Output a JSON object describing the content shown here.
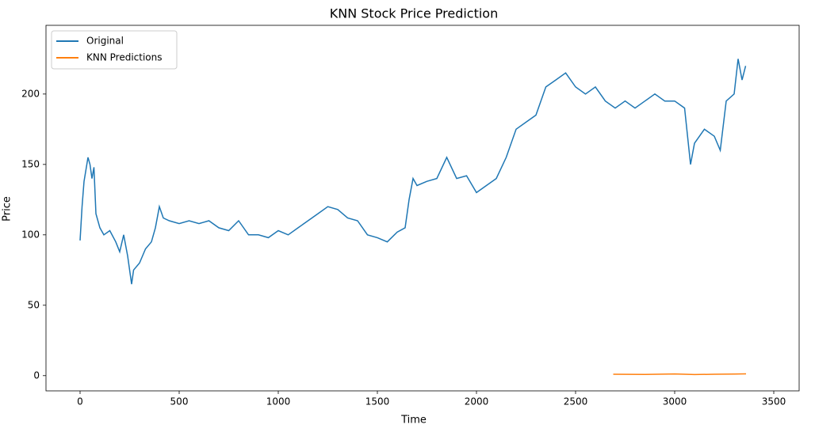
{
  "chart_data": {
    "type": "line",
    "title": "KNN Stock Price Prediction",
    "xlabel": "Time",
    "ylabel": "Price",
    "xlim": [
      -172,
      3628
    ],
    "ylim": [
      -10.8,
      248.8
    ],
    "xticks": [
      0,
      500,
      1000,
      1500,
      2000,
      2500,
      3000,
      3500
    ],
    "yticks": [
      0,
      50,
      100,
      150,
      200
    ],
    "legend": "upper left",
    "grid": false,
    "series": [
      {
        "name": "Original",
        "color": "#1f77b4",
        "x": [
          0,
          10,
          20,
          40,
          50,
          60,
          70,
          80,
          100,
          120,
          150,
          180,
          200,
          220,
          240,
          260,
          270,
          300,
          330,
          360,
          380,
          400,
          420,
          450,
          500,
          550,
          600,
          650,
          700,
          750,
          800,
          850,
          900,
          950,
          1000,
          1050,
          1100,
          1150,
          1200,
          1250,
          1300,
          1350,
          1400,
          1450,
          1500,
          1550,
          1600,
          1640,
          1660,
          1680,
          1700,
          1750,
          1800,
          1850,
          1900,
          1950,
          2000,
          2050,
          2100,
          2150,
          2200,
          2250,
          2300,
          2350,
          2400,
          2450,
          2500,
          2550,
          2600,
          2650,
          2700,
          2750,
          2800,
          2850,
          2900,
          2950,
          3000,
          3050,
          3080,
          3100,
          3150,
          3200,
          3230,
          3260,
          3300,
          3320,
          3340,
          3358
        ],
        "values": [
          96,
          120,
          138,
          155,
          150,
          140,
          148,
          115,
          105,
          100,
          103,
          95,
          88,
          100,
          85,
          65,
          75,
          80,
          90,
          95,
          105,
          120,
          112,
          110,
          108,
          110,
          108,
          110,
          105,
          103,
          110,
          100,
          100,
          98,
          103,
          100,
          105,
          110,
          115,
          120,
          118,
          112,
          110,
          100,
          98,
          95,
          102,
          105,
          125,
          140,
          135,
          138,
          140,
          155,
          140,
          142,
          130,
          135,
          140,
          155,
          175,
          180,
          185,
          205,
          210,
          215,
          205,
          200,
          205,
          195,
          190,
          195,
          190,
          195,
          200,
          195,
          195,
          190,
          150,
          165,
          175,
          170,
          160,
          195,
          200,
          225,
          210,
          220
        ]
      },
      {
        "name": "KNN Predictions",
        "color": "#ff7f0e",
        "x": [
          2690,
          2850,
          3000,
          3100,
          3200,
          3300,
          3360
        ],
        "values": [
          1,
          0.9,
          1.2,
          0.8,
          1,
          1.1,
          1.3
        ]
      }
    ]
  }
}
